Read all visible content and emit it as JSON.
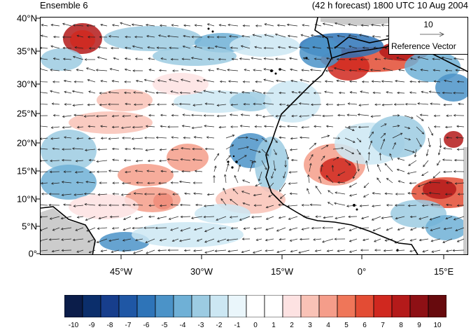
{
  "header": {
    "ensemble_label": "Ensemble 6",
    "forecast_label": "(42 h forecast) 1800 UTC 10 Aug 2004"
  },
  "map": {
    "projection": "lat-lon",
    "extent": {
      "lon": [
        -60,
        20
      ],
      "lat": [
        0,
        40
      ]
    },
    "lat_ticks": [
      "40°N",
      "35°N",
      "30°N",
      "25°N",
      "20°N",
      "15°N",
      "10°N",
      "5°N",
      "0°"
    ],
    "lon_ticks": [
      "45°W",
      "30°W",
      "15°W",
      "0°",
      "15°E"
    ],
    "fill_field": "anomaly shading",
    "vectors": "wind vectors"
  },
  "reference_vector": {
    "value": "10",
    "label": "Reference Vector"
  },
  "colorbar": {
    "ticks": [
      "-10",
      "-9",
      "-8",
      "-7",
      "-6",
      "-5",
      "-4",
      "-3",
      "-2",
      "-1",
      "0",
      "1",
      "2",
      "3",
      "4",
      "5",
      "6",
      "7",
      "8",
      "9",
      "10"
    ],
    "colors": [
      "#0b1d4a",
      "#0b2e6b",
      "#173e8c",
      "#1f57a5",
      "#2e74b8",
      "#4b93c8",
      "#6fb0d6",
      "#9ccbe2",
      "#cce7f3",
      "#eaf6fb",
      "#ffffff",
      "#ffffff",
      "#fde2e2",
      "#f9c2b6",
      "#f59d8a",
      "#ef7659",
      "#e34c34",
      "#d0281f",
      "#b41a1a",
      "#8e1015",
      "#670a0d"
    ]
  },
  "colors": {
    "land_outline": "#000000",
    "missing": "#cccccc"
  }
}
